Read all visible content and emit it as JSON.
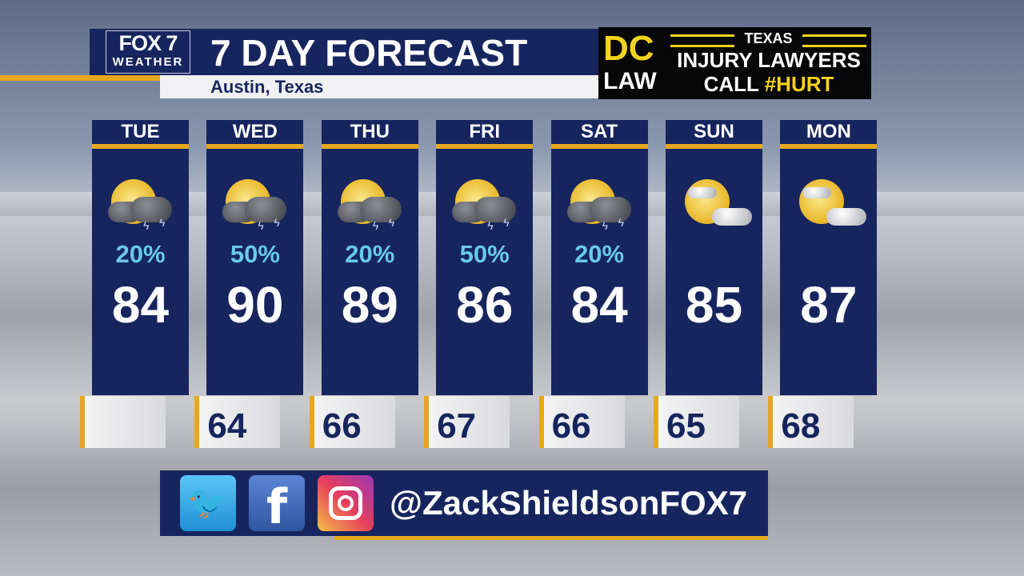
{
  "header": {
    "logo_top": "FOX 7",
    "logo_bottom": "WEATHER",
    "title": "7 DAY FORECAST",
    "location": "Austin, Texas"
  },
  "ad": {
    "brand_top": "DC",
    "brand_bottom": "LAW",
    "line1": "TEXAS",
    "line2": "INJURY LAWYERS",
    "line3_a": "CALL",
    "line3_b": "#HURT"
  },
  "days": [
    {
      "day": "TUE",
      "icon": "thunderstorm-icon",
      "pop": "20%",
      "high": "84",
      "low": ""
    },
    {
      "day": "WED",
      "icon": "thunderstorm-icon",
      "pop": "50%",
      "high": "90",
      "low": "64"
    },
    {
      "day": "THU",
      "icon": "thunderstorm-icon",
      "pop": "20%",
      "high": "89",
      "low": "66"
    },
    {
      "day": "FRI",
      "icon": "thunderstorm-icon",
      "pop": "50%",
      "high": "86",
      "low": "67"
    },
    {
      "day": "SAT",
      "icon": "thunderstorm-icon",
      "pop": "20%",
      "high": "84",
      "low": "66"
    },
    {
      "day": "SUN",
      "icon": "partly-cloudy-icon",
      "pop": "",
      "high": "85",
      "low": "65"
    },
    {
      "day": "MON",
      "icon": "partly-cloudy-icon",
      "pop": "",
      "high": "87",
      "low": "68"
    }
  ],
  "social": {
    "handle": "@ZackShieldsonFOX7",
    "icons": [
      "twitter-icon",
      "facebook-icon",
      "instagram-icon"
    ]
  },
  "colors": {
    "navy": "#17255f",
    "accent": "#e7a81d",
    "pop": "#69c9ea",
    "ad_yellow": "#f2d31b"
  }
}
